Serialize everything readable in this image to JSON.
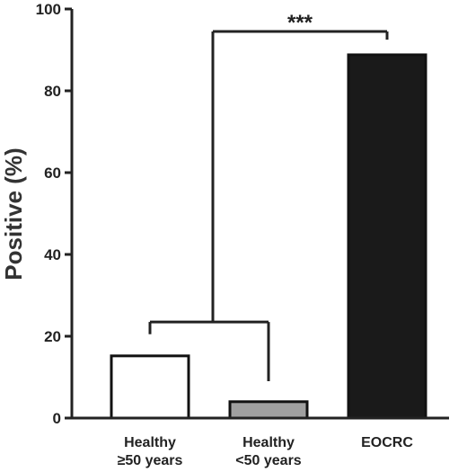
{
  "chart_data": {
    "type": "bar",
    "ylabel": "Positive  (%)",
    "ylim": [
      0,
      100
    ],
    "yticks": [
      0,
      20,
      40,
      60,
      80,
      100
    ],
    "categories": [
      {
        "line1": "Healthy",
        "line2": "≥50 years"
      },
      {
        "line1": "Healthy",
        "line2": "<50 years"
      },
      {
        "line1": "EOCRC",
        "line2": ""
      }
    ],
    "values": [
      15.2,
      4,
      88.8
    ],
    "bar_colors": [
      "#ffffff",
      "#a0a0a0",
      "#1a1a1a"
    ],
    "bar_stroke": "#111111",
    "significance": {
      "label": "***",
      "compares": "healthy groups vs EOCRC"
    }
  }
}
